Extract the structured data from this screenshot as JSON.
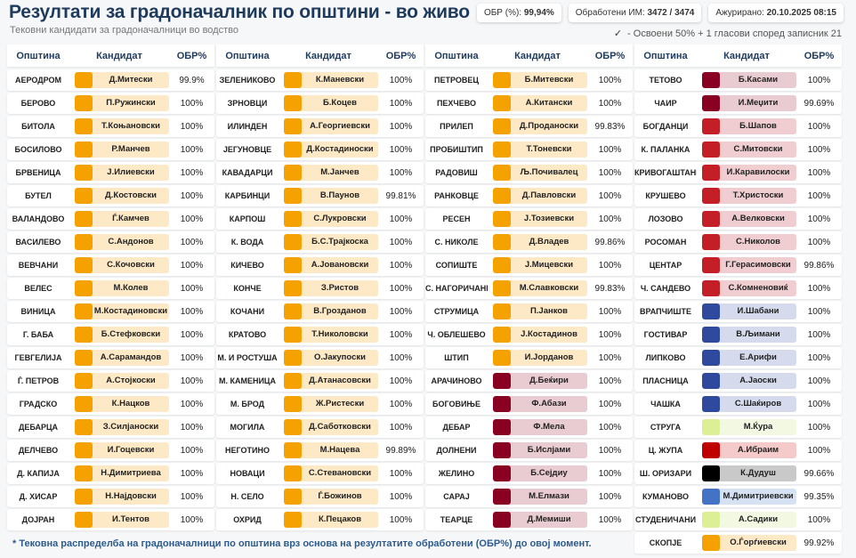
{
  "header": {
    "title": "Резултати за градоначалник по општини - во живо",
    "subtitle": "Тековни кандидати за градоначалници во водство",
    "obr_label": "ОБР (%):",
    "obr_value": "99,94%",
    "processed_label": "Обработени ИМ:",
    "processed_value": "3472 / 3474",
    "updated_label": "Ажурирано:",
    "updated_value": "20.10.2025 08:15",
    "legend_icon": "checkmark-icon",
    "legend_text": "- Освоени 50% + 1 гласови според записник 21"
  },
  "columns": {
    "town": "Општина",
    "candidate": "Кандидат",
    "pct": "ОБР%"
  },
  "party_colors": {
    "orange": {
      "main": "#f5a100",
      "light": "#fde9c6"
    },
    "darkred": {
      "main": "#8a0022",
      "light": "#e9cbd2"
    },
    "red": {
      "main": "#c41e26",
      "light": "#efcdd1"
    },
    "blue": {
      "main": "#2f4a9c",
      "light": "#d5dbec"
    },
    "lime": {
      "main": "#ddef95",
      "light": "#f3f8e2"
    },
    "brightred": {
      "main": "#c00000",
      "light": "#f5caca"
    },
    "black": {
      "main": "#000000",
      "light": "#c9c9c9"
    },
    "lightblue": {
      "main": "#4472c4",
      "light": "#d6e1f3"
    }
  },
  "groups": [
    [
      {
        "town": "АЕРОДРОМ",
        "candidate": "Д.Митески",
        "pct": "99.9%",
        "party": "orange"
      },
      {
        "town": "БЕРОВО",
        "candidate": "П.Ружински",
        "pct": "100%",
        "party": "orange"
      },
      {
        "town": "БИТОЛА",
        "candidate": "Т.Коњановски",
        "pct": "100%",
        "party": "orange"
      },
      {
        "town": "БОСИЛОВО",
        "candidate": "Р.Манчев",
        "pct": "100%",
        "party": "orange"
      },
      {
        "town": "БРВЕНИЦА",
        "candidate": "Ј.Илиевски",
        "pct": "100%",
        "party": "orange"
      },
      {
        "town": "БУТЕЛ",
        "candidate": "Д.Костовски",
        "pct": "100%",
        "party": "orange"
      },
      {
        "town": "ВАЛАНДОВО",
        "candidate": "Ѓ.Камчев",
        "pct": "100%",
        "party": "orange"
      },
      {
        "town": "ВАСИЛЕВО",
        "candidate": "С.Андонов",
        "pct": "100%",
        "party": "orange"
      },
      {
        "town": "ВЕВЧАНИ",
        "candidate": "С.Кочовски",
        "pct": "100%",
        "party": "orange"
      },
      {
        "town": "ВЕЛЕС",
        "candidate": "М.Колев",
        "pct": "100%",
        "party": "orange"
      },
      {
        "town": "ВИНИЦА",
        "candidate": "М.Костадиновски",
        "pct": "100%",
        "party": "orange"
      },
      {
        "town": "Г. БАБА",
        "candidate": "Б.Стефковски",
        "pct": "100%",
        "party": "orange"
      },
      {
        "town": "ГЕВГЕЛИЈА",
        "candidate": "А.Сарамандов",
        "pct": "100%",
        "party": "orange"
      },
      {
        "town": "Ѓ. ПЕТРОВ",
        "candidate": "А.Стојкоски",
        "pct": "100%",
        "party": "orange"
      },
      {
        "town": "ГРАДСКО",
        "candidate": "К.Нацков",
        "pct": "100%",
        "party": "orange"
      },
      {
        "town": "ДЕБАРЦА",
        "candidate": "З.Силјаноски",
        "pct": "100%",
        "party": "orange"
      },
      {
        "town": "ДЕЛЧЕВО",
        "candidate": "И.Гоцевски",
        "pct": "100%",
        "party": "orange"
      },
      {
        "town": "Д. КАПИЈА",
        "candidate": "Н.Димитриева",
        "pct": "100%",
        "party": "orange"
      },
      {
        "town": "Д. ХИСАР",
        "candidate": "Н.Најдовски",
        "pct": "100%",
        "party": "orange"
      },
      {
        "town": "ДОЈРАН",
        "candidate": "И.Тентов",
        "pct": "100%",
        "party": "orange"
      }
    ],
    [
      {
        "town": "ЗЕЛЕНИКОВО",
        "candidate": "К.Маневски",
        "pct": "100%",
        "party": "orange"
      },
      {
        "town": "ЗРНОВЦИ",
        "candidate": "Б.Коцев",
        "pct": "100%",
        "party": "orange"
      },
      {
        "town": "ИЛИНДЕН",
        "candidate": "А.Георгиевски",
        "pct": "100%",
        "party": "orange"
      },
      {
        "town": "ЈЕГУНОВЦЕ",
        "candidate": "Д.Костадиноски",
        "pct": "100%",
        "party": "orange"
      },
      {
        "town": "КАВАДАРЦИ",
        "candidate": "М.Јанчев",
        "pct": "100%",
        "party": "orange"
      },
      {
        "town": "КАРБИНЦИ",
        "candidate": "В.Паунов",
        "pct": "99.81%",
        "party": "orange"
      },
      {
        "town": "КАРПОШ",
        "candidate": "С.Лукровски",
        "pct": "100%",
        "party": "orange"
      },
      {
        "town": "К. ВОДА",
        "candidate": "Б.С.Трајкоска",
        "pct": "100%",
        "party": "orange"
      },
      {
        "town": "КИЧЕВО",
        "candidate": "А.Јовановски",
        "pct": "100%",
        "party": "orange"
      },
      {
        "town": "КОНЧЕ",
        "candidate": "З.Ристов",
        "pct": "100%",
        "party": "orange"
      },
      {
        "town": "КОЧАНИ",
        "candidate": "В.Грозданов",
        "pct": "100%",
        "party": "orange"
      },
      {
        "town": "КРАТОВО",
        "candidate": "Т.Николовски",
        "pct": "100%",
        "party": "orange"
      },
      {
        "town": "М. И РОСТУША",
        "candidate": "О.Јакупоски",
        "pct": "100%",
        "party": "orange"
      },
      {
        "town": "М. КАМЕНИЦА",
        "candidate": "Д.Атанасовски",
        "pct": "100%",
        "party": "orange"
      },
      {
        "town": "М. БРОД",
        "candidate": "Ж.Ристески",
        "pct": "100%",
        "party": "orange"
      },
      {
        "town": "МОГИЛА",
        "candidate": "Д.Саботковски",
        "pct": "100%",
        "party": "orange"
      },
      {
        "town": "НЕГОТИНО",
        "candidate": "М.Нацева",
        "pct": "99.89%",
        "party": "orange"
      },
      {
        "town": "НОВАЦИ",
        "candidate": "С.Стевановски",
        "pct": "100%",
        "party": "orange"
      },
      {
        "town": "Н. СЕЛО",
        "candidate": "Ѓ.Божинов",
        "pct": "100%",
        "party": "orange"
      },
      {
        "town": "ОХРИД",
        "candidate": "К.Пецаков",
        "pct": "100%",
        "party": "orange"
      }
    ],
    [
      {
        "town": "ПЕТРОВЕЦ",
        "candidate": "Б.Митевски",
        "pct": "100%",
        "party": "orange"
      },
      {
        "town": "ПЕХЧЕВО",
        "candidate": "А.Китански",
        "pct": "100%",
        "party": "orange"
      },
      {
        "town": "ПРИЛЕП",
        "candidate": "Д.Проданоски",
        "pct": "99.83%",
        "party": "orange"
      },
      {
        "town": "ПРОБИШТИП",
        "candidate": "Т.Тоневски",
        "pct": "100%",
        "party": "orange"
      },
      {
        "town": "РАДОВИШ",
        "candidate": "Љ.Почивалец",
        "pct": "100%",
        "party": "orange"
      },
      {
        "town": "РАНКОВЦЕ",
        "candidate": "Д.Павловски",
        "pct": "100%",
        "party": "orange"
      },
      {
        "town": "РЕСЕН",
        "candidate": "Ј.Тозиевски",
        "pct": "100%",
        "party": "orange"
      },
      {
        "town": "С. НИКОЛЕ",
        "candidate": "Д.Владев",
        "pct": "99.86%",
        "party": "orange"
      },
      {
        "town": "СОПИШТЕ",
        "candidate": "Ј.Мицевски",
        "pct": "100%",
        "party": "orange"
      },
      {
        "town": "С. НАГОРИЧАНЕ",
        "candidate": "М.Славковски",
        "pct": "99.83%",
        "party": "orange"
      },
      {
        "town": "СТРУМИЦА",
        "candidate": "П.Јанков",
        "pct": "100%",
        "party": "orange"
      },
      {
        "town": "Ч. ОБЛЕШЕВО",
        "candidate": "Ј.Костадинов",
        "pct": "100%",
        "party": "orange"
      },
      {
        "town": "ШТИП",
        "candidate": "И.Јорданов",
        "pct": "100%",
        "party": "orange"
      },
      {
        "town": "АРАЧИНОВО",
        "candidate": "Д.Беќири",
        "pct": "100%",
        "party": "darkred"
      },
      {
        "town": "БОГОВИЊЕ",
        "candidate": "Ф.Абази",
        "pct": "100%",
        "party": "darkred"
      },
      {
        "town": "ДЕБАР",
        "candidate": "Ф.Мела",
        "pct": "100%",
        "party": "darkred"
      },
      {
        "town": "ДОЛНЕНИ",
        "candidate": "Б.Ислјами",
        "pct": "100%",
        "party": "darkred"
      },
      {
        "town": "ЖЕЛИНО",
        "candidate": "Б.Сејдиу",
        "pct": "100%",
        "party": "darkred"
      },
      {
        "town": "САРАЈ",
        "candidate": "М.Елмази",
        "pct": "100%",
        "party": "darkred"
      },
      {
        "town": "ТЕАРЦЕ",
        "candidate": "Д.Мемиши",
        "pct": "100%",
        "party": "darkred"
      }
    ],
    [
      {
        "town": "ТЕТОВО",
        "candidate": "Б.Касами",
        "pct": "100%",
        "party": "darkred"
      },
      {
        "town": "ЧАИР",
        "candidate": "И.Меџити",
        "pct": "99.69%",
        "party": "darkred"
      },
      {
        "town": "БОГДАНЦИ",
        "candidate": "Б.Шапов",
        "pct": "100%",
        "party": "red"
      },
      {
        "town": "К. ПАЛАНКА",
        "candidate": "С.Митовски",
        "pct": "100%",
        "party": "red"
      },
      {
        "town": "КРИВОГАШТАНИ",
        "candidate": "И.Каравилоски",
        "pct": "100%",
        "party": "red"
      },
      {
        "town": "КРУШЕВО",
        "candidate": "Т.Христоски",
        "pct": "100%",
        "party": "red"
      },
      {
        "town": "ЛОЗОВО",
        "candidate": "А.Велковски",
        "pct": "100%",
        "party": "red"
      },
      {
        "town": "РОСОМАН",
        "candidate": "С.Николов",
        "pct": "100%",
        "party": "red"
      },
      {
        "town": "ЦЕНТАР",
        "candidate": "Г.Герасимовски",
        "pct": "99.86%",
        "party": "red"
      },
      {
        "town": "Ч. САНДЕВО",
        "candidate": "С.Комненовиќ",
        "pct": "100%",
        "party": "red"
      },
      {
        "town": "ВРАПЧИШТЕ",
        "candidate": "И.Шабани",
        "pct": "100%",
        "party": "blue"
      },
      {
        "town": "ГОСТИВАР",
        "candidate": "В.Љимани",
        "pct": "100%",
        "party": "blue"
      },
      {
        "town": "ЛИПКОВО",
        "candidate": "Е.Арифи",
        "pct": "100%",
        "party": "blue"
      },
      {
        "town": "ПЛАСНИЦА",
        "candidate": "А.Јаоски",
        "pct": "100%",
        "party": "blue"
      },
      {
        "town": "ЧАШКА",
        "candidate": "С.Шаќиров",
        "pct": "100%",
        "party": "blue"
      },
      {
        "town": "СТРУГА",
        "candidate": "М.Ќура",
        "pct": "100%",
        "party": "lime"
      },
      {
        "town": "Ц. ЖУПА",
        "candidate": "А.Ибраим",
        "pct": "100%",
        "party": "brightred"
      },
      {
        "town": "Ш. ОРИЗАРИ",
        "candidate": "К.Дудуш",
        "pct": "99.66%",
        "party": "black"
      },
      {
        "town": "КУМАНОВО",
        "candidate": "М.Димитриевски",
        "pct": "99.35%",
        "party": "lightblue"
      },
      {
        "town": "СТУДЕНИЧАНИ",
        "candidate": "А.Садики",
        "pct": "100%",
        "party": "lime"
      },
      {
        "town": "СКОПЈЕ",
        "candidate": "О.Ѓорѓиевски",
        "pct": "99.92%",
        "party": "orange"
      }
    ]
  ],
  "footer": "* Тековна распределба на градоначалници по општина врз основа на резултатите обработени (ОБР%) до овој момент."
}
